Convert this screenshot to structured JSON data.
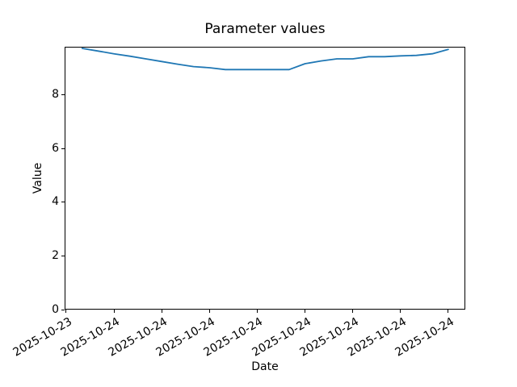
{
  "chart_data": {
    "type": "line",
    "title": "Parameter values",
    "xlabel": "Date",
    "ylabel": "Value",
    "line_color": "#1f77b4",
    "background_color": "#ffffff",
    "grid": false,
    "legend_position": "none",
    "x_hours": [
      0,
      1,
      2,
      3,
      4,
      5,
      6,
      7,
      8,
      9,
      10,
      11,
      12,
      13,
      14,
      15,
      16,
      17,
      18,
      19,
      20,
      21,
      22,
      23
    ],
    "values": [
      9.73,
      9.63,
      9.53,
      9.44,
      9.34,
      9.24,
      9.14,
      9.05,
      9.01,
      8.94,
      8.94,
      8.94,
      8.94,
      8.94,
      9.16,
      9.26,
      9.34,
      9.34,
      9.42,
      9.42,
      9.45,
      9.47,
      9.53,
      9.69
    ],
    "x_tick_hours": [
      -1,
      2,
      5,
      8,
      11,
      14,
      17,
      20,
      23
    ],
    "x_tick_labels": [
      "2025-10-23",
      "2025-10-24",
      "2025-10-24",
      "2025-10-24",
      "2025-10-24",
      "2025-10-24",
      "2025-10-24",
      "2025-10-24",
      "2025-10-24"
    ],
    "y_ticks": [
      0,
      2,
      4,
      6,
      8
    ],
    "y_tick_labels": [
      "0",
      "2",
      "4",
      "6",
      "8"
    ],
    "xlim_hours": [
      -1.1,
      24.07
    ],
    "ylim": [
      0,
      9.79
    ]
  }
}
